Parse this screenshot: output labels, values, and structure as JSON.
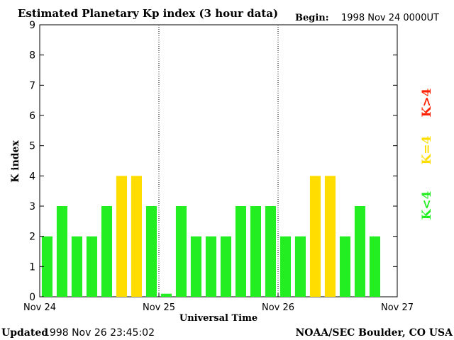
{
  "chart_data": {
    "type": "bar",
    "title": "Estimated Planetary Kp index (3 hour data)",
    "begin_label": "Begin:",
    "begin_value": "1998 Nov 24 0000UT",
    "xlabel": "Universal Time",
    "ylabel": "K index",
    "ylim": [
      0,
      9
    ],
    "y_ticks": [
      "0",
      "1",
      "2",
      "3",
      "4",
      "5",
      "6",
      "7",
      "8",
      "9"
    ],
    "x_ticks": [
      "Nov 24",
      "Nov 25",
      "Nov 26",
      "Nov 27"
    ],
    "day_separators": [
      "Nov 25",
      "Nov 26"
    ],
    "values": [
      2,
      3,
      2,
      2,
      3,
      4,
      4,
      3,
      0.1,
      3,
      2,
      2,
      2,
      3,
      3,
      3,
      2,
      2,
      4,
      4,
      2,
      3,
      2
    ],
    "legend": [
      {
        "label": "K<4",
        "color": "#22ee22"
      },
      {
        "label": "K=4",
        "color": "#ffdd00"
      },
      {
        "label": "K>4",
        "color": "#ff2200"
      }
    ],
    "thresholds": {
      "low_color": "#22ee22",
      "mid_color": "#ffdd00",
      "high_color": "#ff2200"
    }
  },
  "footer": {
    "updated_label": "Updated",
    "updated_value": "1998 Nov 26 23:45:02",
    "credit": "NOAA/SEC Boulder, CO USA"
  }
}
